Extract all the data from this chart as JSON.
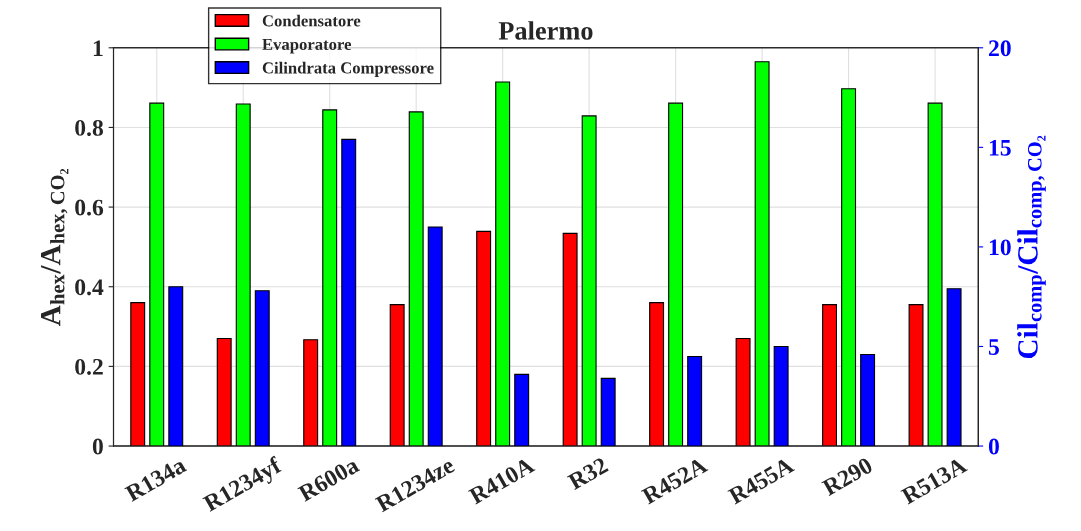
{
  "chart_data": {
    "type": "bar",
    "title": "Palermo",
    "ylabel": "A$_{hex}$/A$_{hex,CO₂}$",
    "y2label": "Cil$_{comp}$/Cil$_{comp,CO₂}$",
    "categories": [
      "R134a",
      "R1234yf",
      "R600a",
      "R1234ze",
      "R410A",
      "R32",
      "R452A",
      "R455A",
      "R290",
      "R513A"
    ],
    "series": [
      {
        "name": "Condensatore",
        "color": "#ff0000",
        "values": [
          0.36,
          0.27,
          0.267,
          0.355,
          0.539,
          0.534,
          0.36,
          0.27,
          0.355,
          0.355
        ]
      },
      {
        "name": "Evaporatore",
        "color": "#00ff00",
        "values": [
          0.861,
          0.859,
          0.844,
          0.839,
          0.914,
          0.829,
          0.861,
          0.965,
          0.897,
          0.861
        ]
      },
      {
        "name": "Cilindrata Compressore",
        "color": "#0000ff",
        "axis": "y2",
        "values": [
          8.0,
          7.8,
          15.4,
          11.0,
          3.6,
          3.4,
          4.5,
          5.0,
          4.6,
          7.9
        ]
      }
    ],
    "ylim": [
      0,
      1
    ],
    "yticks": [
      0,
      0.2,
      0.4,
      0.6,
      0.8,
      1
    ],
    "y2lim": [
      0,
      20
    ],
    "y2ticks": [
      0,
      5,
      10,
      15,
      20
    ],
    "grid": true,
    "legend": "top left"
  }
}
